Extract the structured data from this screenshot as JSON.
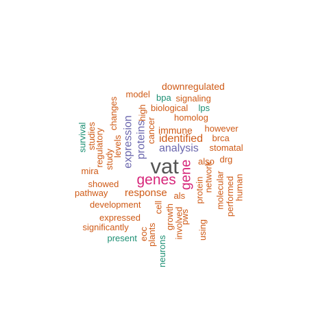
{
  "palette": {
    "grey": "#555555",
    "magenta": "#d6267a",
    "purple": "#6a66ad",
    "orange": "#cf5a16",
    "teal": "#1c8f73"
  },
  "words": [
    {
      "text": "vat",
      "color": "grey"
    },
    {
      "text": "genes",
      "color": "magenta"
    },
    {
      "text": "gene",
      "color": "magenta"
    },
    {
      "text": "analysis",
      "color": "purple"
    },
    {
      "text": "expression",
      "color": "purple"
    },
    {
      "text": "proteins",
      "color": "purple"
    },
    {
      "text": "identified",
      "color": "orange"
    },
    {
      "text": "response",
      "color": "orange"
    },
    {
      "text": "immune",
      "color": "orange"
    },
    {
      "text": "downregulated",
      "color": "orange"
    },
    {
      "text": "model",
      "color": "orange"
    },
    {
      "text": "bpa",
      "color": "teal"
    },
    {
      "text": "signaling",
      "color": "orange"
    },
    {
      "text": "biological",
      "color": "orange"
    },
    {
      "text": "lps",
      "color": "teal"
    },
    {
      "text": "homolog",
      "color": "orange"
    },
    {
      "text": "high",
      "color": "orange"
    },
    {
      "text": "changes",
      "color": "orange"
    },
    {
      "text": "cancer",
      "color": "orange"
    },
    {
      "text": "however",
      "color": "orange"
    },
    {
      "text": "brca",
      "color": "orange"
    },
    {
      "text": "stomatal",
      "color": "orange"
    },
    {
      "text": "survival",
      "color": "teal"
    },
    {
      "text": "studies",
      "color": "orange"
    },
    {
      "text": "regulatory",
      "color": "orange"
    },
    {
      "text": "levels",
      "color": "orange"
    },
    {
      "text": "study",
      "color": "orange"
    },
    {
      "text": "also",
      "color": "orange"
    },
    {
      "text": "drg",
      "color": "orange"
    },
    {
      "text": "mira",
      "color": "orange"
    },
    {
      "text": "showed",
      "color": "orange"
    },
    {
      "text": "pathway",
      "color": "orange"
    },
    {
      "text": "als",
      "color": "orange"
    },
    {
      "text": "cell",
      "color": "orange"
    },
    {
      "text": "protein",
      "color": "orange"
    },
    {
      "text": "network",
      "color": "orange"
    },
    {
      "text": "molecular",
      "color": "orange"
    },
    {
      "text": "performed",
      "color": "orange"
    },
    {
      "text": "human",
      "color": "orange"
    },
    {
      "text": "development",
      "color": "orange"
    },
    {
      "text": "growth",
      "color": "orange"
    },
    {
      "text": "pws",
      "color": "orange"
    },
    {
      "text": "expressed",
      "color": "orange"
    },
    {
      "text": "significantly",
      "color": "orange"
    },
    {
      "text": "present",
      "color": "teal"
    },
    {
      "text": "eoc",
      "color": "orange"
    },
    {
      "text": "plants",
      "color": "orange"
    },
    {
      "text": "involved",
      "color": "orange"
    },
    {
      "text": "using",
      "color": "orange"
    },
    {
      "text": "neurons",
      "color": "teal"
    }
  ]
}
